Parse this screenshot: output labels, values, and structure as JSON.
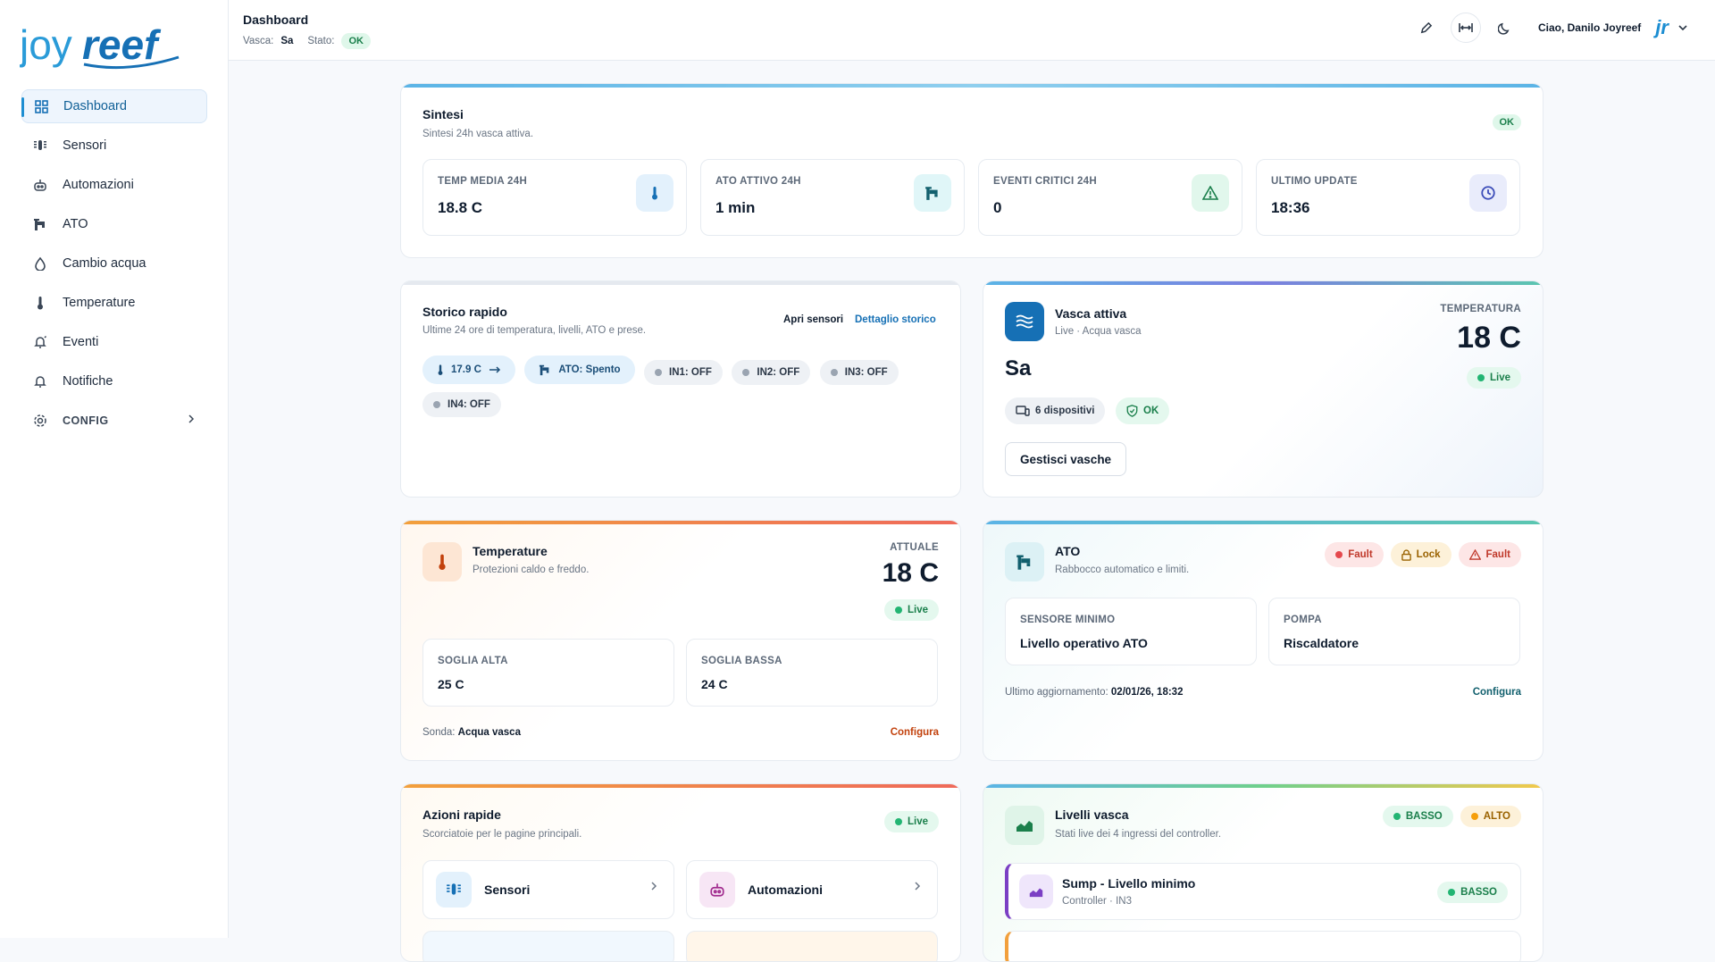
{
  "brand": {
    "logo_text_1": "joy",
    "logo_text_2": "reef",
    "accent": "#1d8ed2"
  },
  "sidebar": {
    "items": [
      {
        "label": "Dashboard",
        "icon": "dashboard-grid-icon",
        "active": true
      },
      {
        "label": "Sensori",
        "icon": "sensor-icon"
      },
      {
        "label": "Automazioni",
        "icon": "robot-icon"
      },
      {
        "label": "ATO",
        "icon": "faucet-icon"
      },
      {
        "label": "Cambio acqua",
        "icon": "water-drop-icon"
      },
      {
        "label": "Temperature",
        "icon": "thermometer-icon"
      },
      {
        "label": "Eventi",
        "icon": "bell-ring-icon"
      },
      {
        "label": "Notifiche",
        "icon": "bell-icon"
      },
      {
        "label": "CONFIG",
        "icon": "gear-icon"
      }
    ]
  },
  "header": {
    "title": "Dashboard",
    "vasca_label": "Vasca:",
    "vasca_value": "Sa",
    "stato_label": "Stato:",
    "stato_value": "OK",
    "greeting": "Ciao, Danilo Joyreef",
    "avatar_text": "jr"
  },
  "sintesi": {
    "title": "Sintesi",
    "subtitle": "Sintesi 24h vasca attiva.",
    "status": "OK",
    "stats": [
      {
        "label": "TEMP MEDIA 24H",
        "value": "18.8 C",
        "icon": "thermometer-icon"
      },
      {
        "label": "ATO ATTIVO 24H",
        "value": "1 min",
        "icon": "faucet-icon"
      },
      {
        "label": "EVENTI CRITICI 24H",
        "value": "0",
        "icon": "warning-icon"
      },
      {
        "label": "ULTIMO UPDATE",
        "value": "18:36",
        "icon": "clock-icon"
      }
    ]
  },
  "storico": {
    "title": "Storico rapido",
    "subtitle": "Ultime 24 ore di temperatura, livelli, ATO e prese.",
    "link_sensori": "Apri sensori",
    "link_dettaglio": "Dettaglio storico",
    "temp_chip": "17.9 C",
    "ato_chip": "ATO: Spento",
    "inputs": [
      "IN1: OFF",
      "IN2: OFF",
      "IN3: OFF",
      "IN4: OFF"
    ]
  },
  "vasca": {
    "title": "Vasca attiva",
    "subtitle": "Live · Acqua vasca",
    "name": "Sa",
    "temp_label": "TEMPERATURA",
    "temp_value": "18 C",
    "live": "Live",
    "devices": "6 dispositivi",
    "status": "OK",
    "manage_button": "Gestisci vasche"
  },
  "temperature": {
    "title": "Temperature",
    "subtitle": "Protezioni caldo e freddo.",
    "current_label": "ATTUALE",
    "current_value": "18 C",
    "live": "Live",
    "high_label": "SOGLIA ALTA",
    "high_value": "25 C",
    "low_label": "SOGLIA BASSA",
    "low_value": "24 C",
    "probe_label": "Sonda:",
    "probe_value": "Acqua vasca",
    "configure": "Configura"
  },
  "ato": {
    "title": "ATO",
    "subtitle": "Rabbocco automatico e limiti.",
    "badge_fault_1": "Fault",
    "badge_lock": "Lock",
    "badge_fault_2": "Fault",
    "sensor_label": "SENSORE MINIMO",
    "sensor_value": "Livello operativo ATO",
    "pump_label": "POMPA",
    "pump_value": "Riscaldatore",
    "updated_label": "Ultimo aggiornamento:",
    "updated_value": "02/01/26, 18:32",
    "configure": "Configura"
  },
  "azioni": {
    "title": "Azioni rapide",
    "subtitle": "Scorciatoie per le pagine principali.",
    "live": "Live",
    "items": [
      {
        "label": "Sensori",
        "icon": "sensor-icon"
      },
      {
        "label": "Automazioni",
        "icon": "robot-icon"
      }
    ]
  },
  "livelli": {
    "title": "Livelli vasca",
    "subtitle": "Stati live dei 4 ingressi del controller.",
    "badge_basso": "BASSO",
    "badge_alto": "ALTO",
    "rows": [
      {
        "title": "Sump - Livello minimo",
        "sub": "Controller · IN3",
        "status": "BASSO"
      }
    ]
  }
}
